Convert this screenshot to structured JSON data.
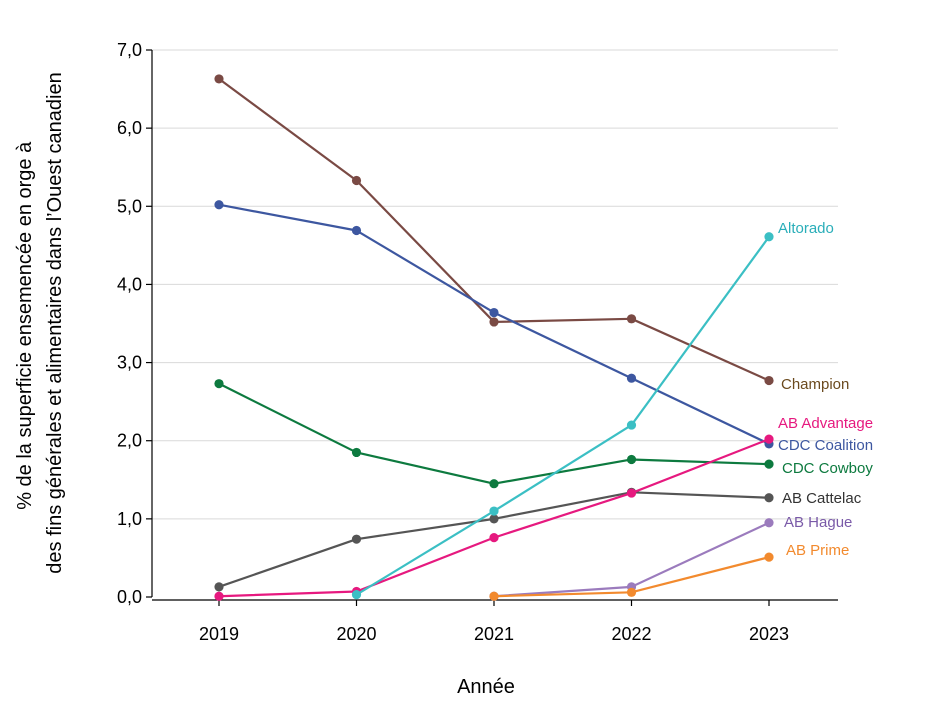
{
  "chart_data": {
    "type": "line",
    "title": "",
    "xlabel": "Année",
    "ylabel_lines": [
      "% de la superficie ensemencée en orge à",
      "des fins générales et alimentaires dans l’Ouest canadien"
    ],
    "x": [
      "2019",
      "2020",
      "2021",
      "2022",
      "2023"
    ],
    "ylim": [
      0,
      7
    ],
    "yticks": [
      {
        "value": 0,
        "label": "0,0"
      },
      {
        "value": 1,
        "label": "1,0"
      },
      {
        "value": 2,
        "label": "2,0"
      },
      {
        "value": 3,
        "label": "3,0"
      },
      {
        "value": 4,
        "label": "4,0"
      },
      {
        "value": 5,
        "label": "5,0"
      },
      {
        "value": 6,
        "label": "6,0"
      },
      {
        "value": 7,
        "label": "7,0"
      }
    ],
    "grid": "horizontal",
    "legend": "labels at line ends",
    "series": [
      {
        "name": "Champion",
        "color": "#7a4a44",
        "label_color": "#6b4a1e",
        "values": [
          6.63,
          5.33,
          3.52,
          3.56,
          2.77
        ]
      },
      {
        "name": "CDC Coalition",
        "color": "#3d57a0",
        "label_color": "#3d57a0",
        "values": [
          5.02,
          4.69,
          3.64,
          2.8,
          1.96
        ]
      },
      {
        "name": "CDC Cowboy",
        "color": "#0d7a3f",
        "label_color": "#0d7a3f",
        "values": [
          2.73,
          1.85,
          1.45,
          1.76,
          1.7
        ]
      },
      {
        "name": "AB Cattelac",
        "color": "#555555",
        "label_color": "#333333",
        "values": [
          0.13,
          0.74,
          1.0,
          1.34,
          1.27
        ]
      },
      {
        "name": "AB Advantage",
        "color": "#e6197f",
        "label_color": "#e6197f",
        "values": [
          0.01,
          0.07,
          0.76,
          1.33,
          2.02
        ]
      },
      {
        "name": "Altorado",
        "color": "#3bbfc4",
        "label_color": "#2aaeb9",
        "values": [
          null,
          0.03,
          1.1,
          2.2,
          4.61
        ]
      },
      {
        "name": "AB Hague",
        "color": "#9b7bbd",
        "label_color": "#7a5aa8",
        "values": [
          null,
          null,
          0.01,
          0.13,
          0.95
        ]
      },
      {
        "name": "AB Prime",
        "color": "#f28a2e",
        "label_color": "#f28a2e",
        "values": [
          null,
          null,
          0.01,
          0.06,
          0.51
        ]
      }
    ]
  }
}
